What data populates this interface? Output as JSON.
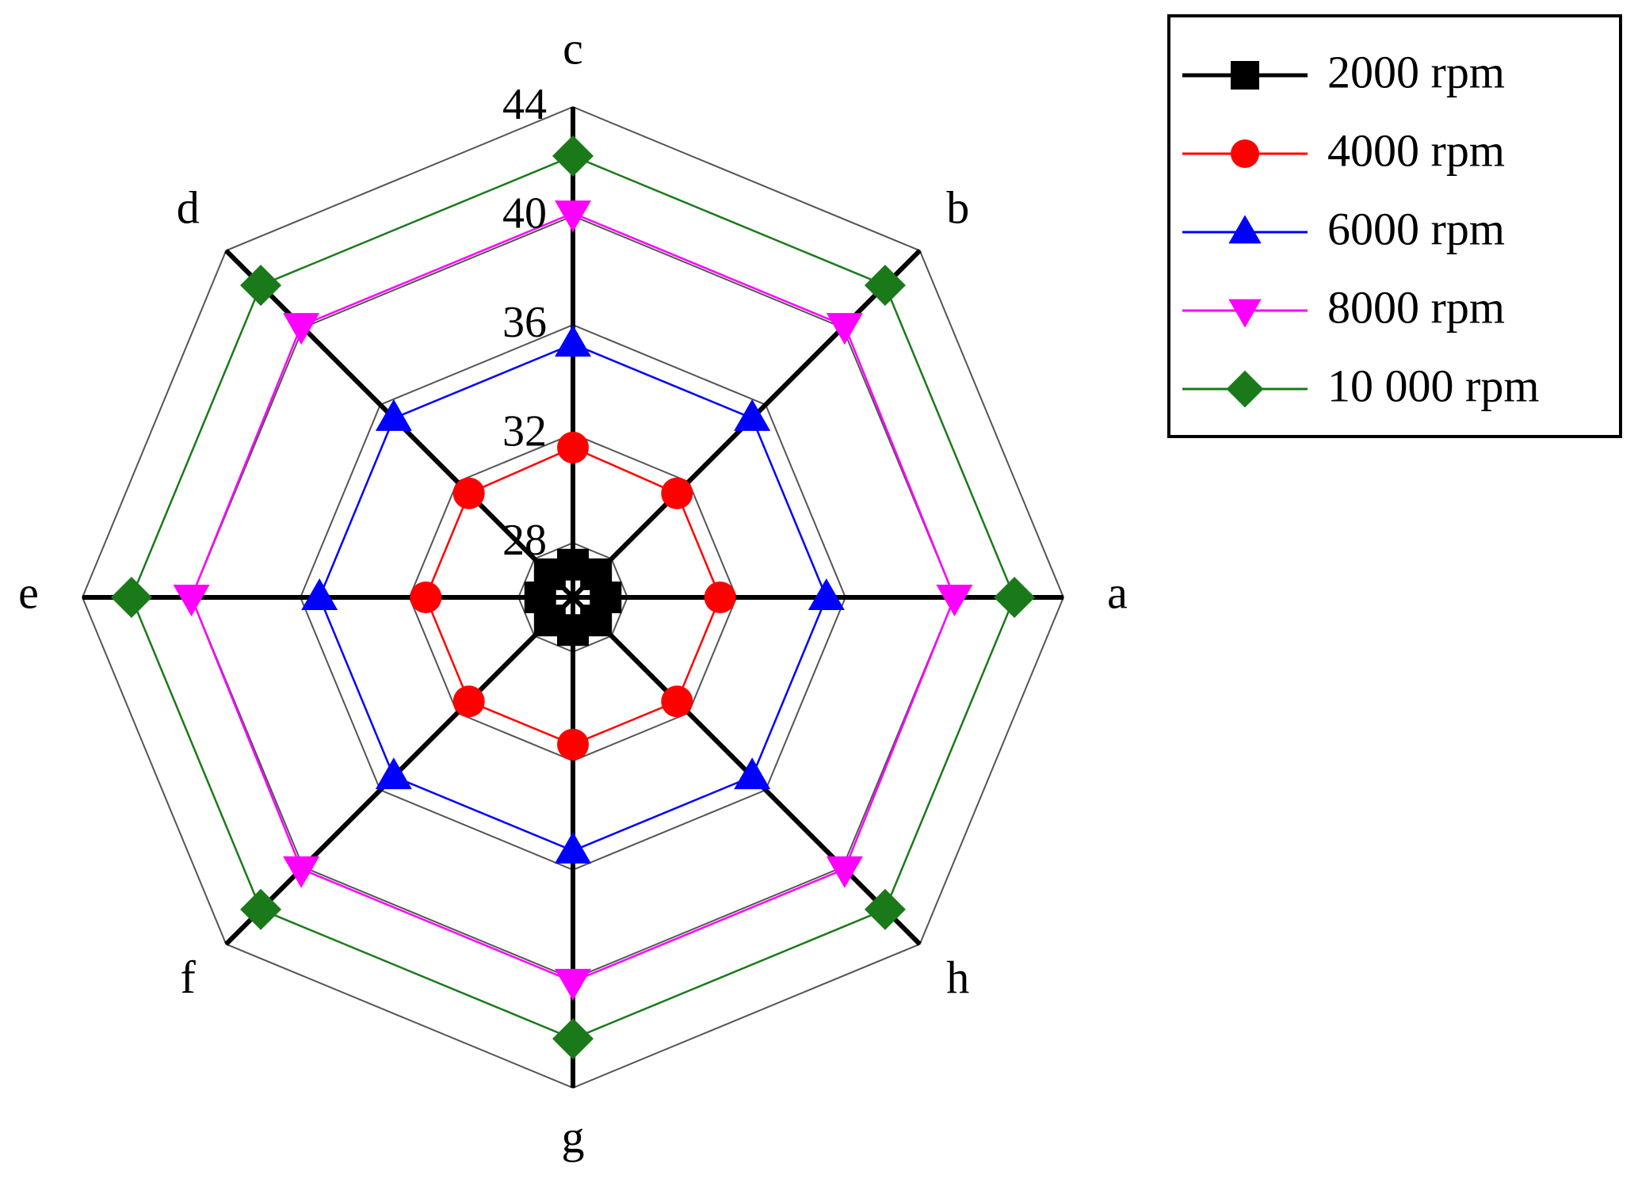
{
  "chart_data": {
    "type": "radar",
    "categories": [
      "a",
      "b",
      "c",
      "d",
      "e",
      "f",
      "g",
      "h"
    ],
    "ylim": [
      26,
      44
    ],
    "yticks": [
      28,
      32,
      36,
      40,
      44
    ],
    "grid": true,
    "legend": "upper right",
    "series": [
      {
        "name": "2000 rpm",
        "color": "#000000",
        "marker": "square",
        "values": [
          27.2,
          27.2,
          27.2,
          27.2,
          27.2,
          27.2,
          27.2,
          27.2
        ]
      },
      {
        "name": "4000 rpm",
        "color": "#ff0000",
        "marker": "circle",
        "values": [
          31.4,
          31.4,
          31.5,
          31.4,
          31.4,
          31.4,
          31.4,
          31.4
        ]
      },
      {
        "name": "6000 rpm",
        "color": "#0000ff",
        "marker": "triangle-up",
        "values": [
          35.3,
          35.3,
          35.3,
          35.3,
          35.3,
          35.3,
          35.3,
          35.3
        ]
      },
      {
        "name": "8000 rpm",
        "color": "#ff00ff",
        "marker": "triangle-down",
        "values": [
          40.0,
          40.1,
          40.1,
          40.1,
          40.0,
          40.1,
          40.1,
          40.1
        ]
      },
      {
        "name": "10 000 rpm",
        "color": "#1a7a1a",
        "marker": "diamond",
        "values": [
          42.2,
          42.2,
          42.2,
          42.2,
          42.2,
          42.2,
          42.2,
          42.2
        ]
      }
    ]
  }
}
